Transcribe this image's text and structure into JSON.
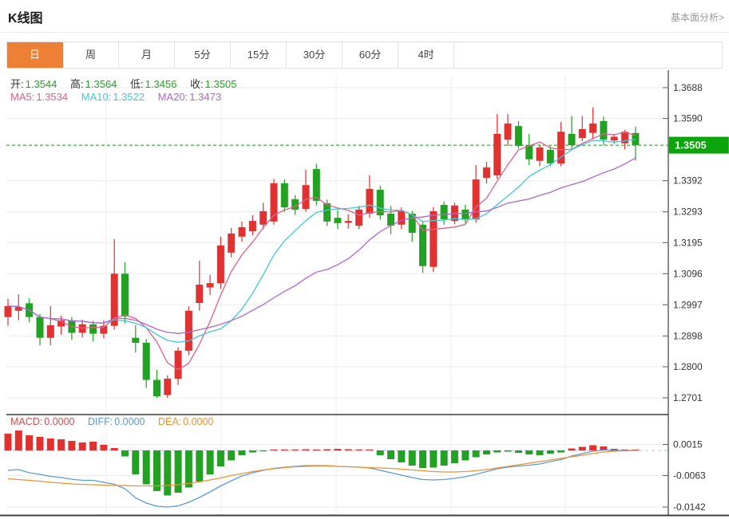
{
  "header": {
    "title": "K线图",
    "link": "基本面分析>"
  },
  "tabs": {
    "items": [
      "日",
      "周",
      "月",
      "5分",
      "15分",
      "30分",
      "60分",
      "4时"
    ],
    "selected_index": 0
  },
  "legend": {
    "ohlc": [
      {
        "label": "开:",
        "value": "1.3544"
      },
      {
        "label": "高:",
        "value": "1.3564"
      },
      {
        "label": "低:",
        "value": "1.3456"
      },
      {
        "label": "收:",
        "value": "1.3505"
      }
    ],
    "ma": [
      {
        "label": "MA5:",
        "value": "1.3534"
      },
      {
        "label": "MA10:",
        "value": "1.3522"
      },
      {
        "label": "MA20:",
        "value": "1.3473"
      }
    ],
    "macd": [
      {
        "label": "MACD:",
        "value": "0.0000"
      },
      {
        "label": "DIFF:",
        "value": "0.0000"
      },
      {
        "label": "DEA:",
        "value": "0.0000"
      }
    ]
  },
  "colors": {
    "up": "#e13232",
    "down": "#22a122",
    "ma5": "#e0608c",
    "ma10": "#3fc8e0",
    "ma20": "#af66d1",
    "diff": "#5b9bd5",
    "dea": "#ed9234",
    "price_tag": "#0ba40b",
    "tab_selected": "#ee8035",
    "value_green": "#21a621",
    "link_gray": "#999999"
  },
  "chart_data": {
    "type": "candlestick",
    "title": "K线图",
    "sub_chart": "macd",
    "ylim": [
      1.265,
      1.3745
    ],
    "grid": true,
    "current_price": {
      "label": "1.3505",
      "value": 1.3505
    },
    "last_ohlc": {
      "open": 1.3544,
      "high": 1.3564,
      "low": 1.3456,
      "close": 1.3505
    },
    "ma_values": {
      "ma5": 1.3534,
      "ma10": 1.3522,
      "ma20": 1.3473
    },
    "axis": {
      "main": [
        [
          "1.3688",
          1.3688
        ],
        [
          "1.3590",
          1.359
        ],
        [
          "1.3392",
          1.3392
        ],
        [
          "1.3293",
          1.3293
        ],
        [
          "1.3195",
          1.3195
        ],
        [
          "1.3096",
          1.3096
        ],
        [
          "1.2997",
          1.2997
        ],
        [
          "1.2898",
          1.2898
        ],
        [
          "1.2800",
          1.28
        ],
        [
          "1.2701",
          1.2701
        ]
      ],
      "macd": [
        [
          "0.0015",
          0.0015
        ],
        [
          "-0.0063",
          -0.0063
        ],
        [
          "-0.0142",
          -0.0142
        ]
      ]
    },
    "candles": [
      [
        1.2958,
        1.3016,
        1.293,
        1.2993
      ],
      [
        1.2978,
        1.303,
        1.2948,
        1.299
      ],
      [
        1.3002,
        1.3018,
        1.2942,
        1.2958
      ],
      [
        1.2958,
        1.2968,
        1.2868,
        1.2892
      ],
      [
        1.2892,
        1.2993,
        1.2868,
        1.2932
      ],
      [
        1.2928,
        1.2962,
        1.2902,
        1.2948
      ],
      [
        1.2948,
        1.2958,
        1.2885,
        1.2908
      ],
      [
        1.2908,
        1.295,
        1.2893,
        1.2935
      ],
      [
        1.2935,
        1.2946,
        1.288,
        1.2905
      ],
      [
        1.2905,
        1.2948,
        1.289,
        1.293
      ],
      [
        1.293,
        1.3206,
        1.2918,
        1.3096
      ],
      [
        1.3096,
        1.3132,
        1.2938,
        1.296
      ],
      [
        1.2892,
        1.2932,
        1.2845,
        1.2876
      ],
      [
        1.2876,
        1.2888,
        1.2732,
        1.2758
      ],
      [
        1.2758,
        1.279,
        1.2701,
        1.2706
      ],
      [
        1.271,
        1.2772,
        1.2701,
        1.2762
      ],
      [
        1.2762,
        1.2862,
        1.2742,
        1.2851
      ],
      [
        1.2851,
        1.2992,
        1.2838,
        1.2978
      ],
      [
        1.3003,
        1.3137,
        1.2978,
        1.3061
      ],
      [
        1.3052,
        1.3092,
        1.3028,
        1.3066
      ],
      [
        1.3066,
        1.3214,
        1.3048,
        1.3186
      ],
      [
        1.3163,
        1.3242,
        1.3148,
        1.3224
      ],
      [
        1.3214,
        1.3262,
        1.3198,
        1.3244
      ],
      [
        1.3231,
        1.3282,
        1.3218,
        1.3264
      ],
      [
        1.3252,
        1.3322,
        1.3238,
        1.3295
      ],
      [
        1.3262,
        1.3398,
        1.3252,
        1.3384
      ],
      [
        1.3384,
        1.3396,
        1.3293,
        1.3307
      ],
      [
        1.3333,
        1.3346,
        1.3283,
        1.33
      ],
      [
        1.3302,
        1.3427,
        1.3293,
        1.3378
      ],
      [
        1.3429,
        1.3446,
        1.3313,
        1.3328
      ],
      [
        1.332,
        1.3332,
        1.3248,
        1.3262
      ],
      [
        1.3274,
        1.3298,
        1.3238,
        1.3257
      ],
      [
        1.3258,
        1.3286,
        1.324,
        1.3264
      ],
      [
        1.3249,
        1.3312,
        1.3238,
        1.33
      ],
      [
        1.3287,
        1.3409,
        1.3275,
        1.3366
      ],
      [
        1.3363,
        1.3376,
        1.3268,
        1.3282
      ],
      [
        1.3287,
        1.3312,
        1.3222,
        1.3249
      ],
      [
        1.3252,
        1.3307,
        1.3238,
        1.3295
      ],
      [
        1.3287,
        1.3296,
        1.3198,
        1.3226
      ],
      [
        1.3252,
        1.3262,
        1.3098,
        1.312
      ],
      [
        1.3118,
        1.3308,
        1.3102,
        1.3295
      ],
      [
        1.3315,
        1.3326,
        1.3252,
        1.3269
      ],
      [
        1.3264,
        1.3322,
        1.3253,
        1.3313
      ],
      [
        1.33,
        1.3316,
        1.3256,
        1.3269
      ],
      [
        1.3269,
        1.3442,
        1.3258,
        1.3396
      ],
      [
        1.3401,
        1.3452,
        1.3383,
        1.3434
      ],
      [
        1.3409,
        1.3604,
        1.3398,
        1.3541
      ],
      [
        1.3523,
        1.3604,
        1.3503,
        1.3574
      ],
      [
        1.3566,
        1.3582,
        1.3494,
        1.3503
      ],
      [
        1.3505,
        1.3541,
        1.3442,
        1.346
      ],
      [
        1.3455,
        1.3506,
        1.3438,
        1.3498
      ],
      [
        1.349,
        1.3502,
        1.3438,
        1.3447
      ],
      [
        1.3447,
        1.3579,
        1.3438,
        1.3548
      ],
      [
        1.3541,
        1.3598,
        1.3493,
        1.3505
      ],
      [
        1.3528,
        1.3598,
        1.3518,
        1.3556
      ],
      [
        1.3544,
        1.3625,
        1.3526,
        1.3574
      ],
      [
        1.3582,
        1.3596,
        1.3504,
        1.3523
      ],
      [
        1.352,
        1.3541,
        1.3509,
        1.3532
      ],
      [
        1.3511,
        1.3554,
        1.3492,
        1.3548
      ],
      [
        1.3544,
        1.3564,
        1.3456,
        1.3505
      ]
    ],
    "macd": {
      "histogram": [
        0.0042,
        0.005,
        0.0038,
        0.0034,
        0.003,
        0.0028,
        0.0024,
        0.002,
        0.0022,
        0.0014,
        0.0006,
        -0.0015,
        -0.006,
        -0.0085,
        -0.0102,
        -0.0113,
        -0.0106,
        -0.0093,
        -0.0078,
        -0.006,
        -0.004,
        -0.0025,
        -0.0012,
        -0.0005,
        -0.0002,
        0.0001,
        0.0002,
        0.0002,
        0.0003,
        0.0002,
        0.0003,
        0.0004,
        0.0003,
        0.0002,
        0.0002,
        -0.0012,
        -0.0022,
        -0.003,
        -0.0038,
        -0.0044,
        -0.0043,
        -0.0038,
        -0.0032,
        -0.0025,
        -0.0017,
        -0.001,
        -0.0005,
        -0.0003,
        -0.0006,
        -0.001,
        -0.0012,
        -0.0008,
        -0.0005,
        0.0005,
        0.0009,
        0.0013,
        0.001,
        0.0004,
        0.0002,
        0.0001
      ],
      "diff_line": [
        -0.005,
        -0.0048,
        -0.0056,
        -0.006,
        -0.0065,
        -0.0068,
        -0.0072,
        -0.0075,
        -0.0075,
        -0.008,
        -0.0085,
        -0.0096,
        -0.0119,
        -0.0132,
        -0.014,
        -0.0142,
        -0.0139,
        -0.013,
        -0.0118,
        -0.0104,
        -0.0089,
        -0.0076,
        -0.0064,
        -0.0056,
        -0.005,
        -0.0045,
        -0.0042,
        -0.004,
        -0.0038,
        -0.0038,
        -0.0038,
        -0.004,
        -0.0041,
        -0.0042,
        -0.0044,
        -0.005,
        -0.0056,
        -0.0062,
        -0.0068,
        -0.0073,
        -0.0074,
        -0.0073,
        -0.007,
        -0.0066,
        -0.006,
        -0.0053,
        -0.0046,
        -0.0042,
        -0.0039,
        -0.0037,
        -0.0034,
        -0.0028,
        -0.0023,
        -0.0014,
        -0.0008,
        -0.0002,
        0.0001,
        0.0,
        0.0,
        0.0
      ],
      "dea_line": [
        -0.0071,
        -0.0073,
        -0.0075,
        -0.0077,
        -0.008,
        -0.0082,
        -0.0084,
        -0.0085,
        -0.0086,
        -0.0087,
        -0.0088,
        -0.0088,
        -0.0089,
        -0.0089,
        -0.0089,
        -0.0088,
        -0.0086,
        -0.0083,
        -0.0079,
        -0.0074,
        -0.0069,
        -0.0063,
        -0.0058,
        -0.0053,
        -0.0049,
        -0.0046,
        -0.0043,
        -0.0041,
        -0.004,
        -0.0039,
        -0.0039,
        -0.004,
        -0.0041,
        -0.0042,
        -0.0043,
        -0.0044,
        -0.0045,
        -0.0047,
        -0.0049,
        -0.0051,
        -0.0053,
        -0.0054,
        -0.0054,
        -0.0053,
        -0.0051,
        -0.0048,
        -0.0044,
        -0.004,
        -0.0036,
        -0.0032,
        -0.0028,
        -0.0024,
        -0.002,
        -0.0016,
        -0.0012,
        -0.0008,
        -0.0004,
        -0.0002,
        -0.0001,
        0.0
      ]
    }
  }
}
